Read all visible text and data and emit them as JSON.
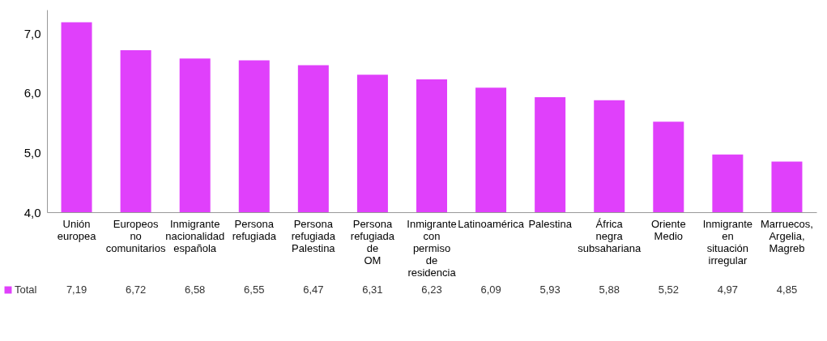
{
  "chart_data": {
    "type": "bar",
    "categories": [
      "Unión europea",
      "Europeos no comunitarios",
      "Inmigrante nacionalidad española",
      "Persona refugiada",
      "Persona refugiada Palestina",
      "Persona refugiada de OM",
      "Inmigrante con permiso de residencia",
      "Latinoamérica",
      "Palestina",
      "África negra subsahariana",
      "Oriente Medio",
      "Inmigrante en situación irregular",
      "Marruecos, Argelia, Magreb"
    ],
    "series": [
      {
        "name": "Total",
        "color": "#e040fb",
        "values": [
          7.19,
          6.72,
          6.58,
          6.55,
          6.47,
          6.31,
          6.23,
          6.09,
          5.93,
          5.88,
          5.52,
          4.97,
          4.85
        ],
        "value_labels": [
          "7,19",
          "6,72",
          "6,58",
          "6,55",
          "6,47",
          "6,31",
          "6,23",
          "6,09",
          "5,93",
          "5,88",
          "5,52",
          "4,97",
          "4,85"
        ]
      }
    ],
    "ylim": [
      4,
      7.4
    ],
    "yticks": [
      {
        "value": 4,
        "label": "4,0"
      },
      {
        "value": 5,
        "label": "5,0"
      },
      {
        "value": 6,
        "label": "6,0"
      },
      {
        "value": 7,
        "label": "7,0"
      }
    ],
    "grid": false,
    "legend": "bottom left"
  }
}
